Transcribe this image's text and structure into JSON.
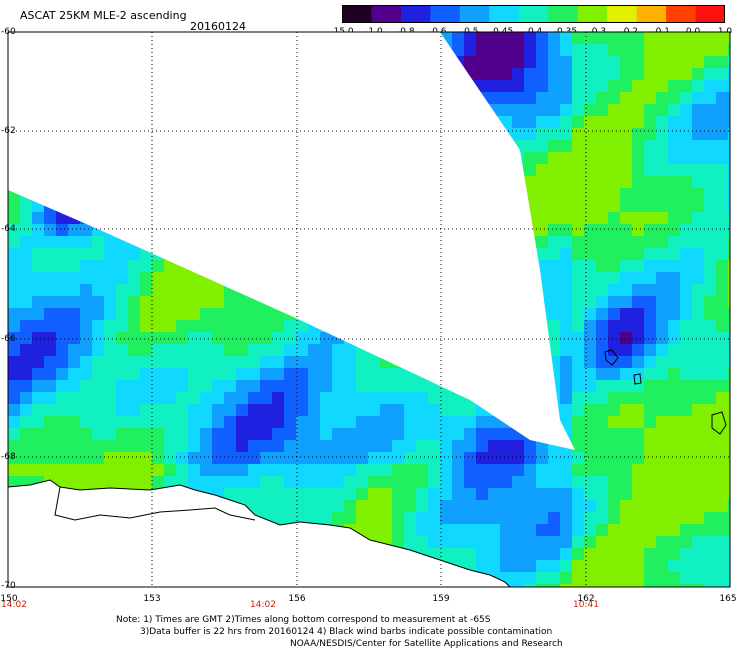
{
  "header": {
    "title": "ASCAT 25KM MLE-2 ascending",
    "date": "20160124"
  },
  "colorbar": {
    "labels": [
      "-15.0",
      "-1.0",
      "-0.8",
      "-0.6",
      "-0.5",
      "-0.45",
      "-0.4",
      "-0.35",
      "-0.3",
      "-0.2",
      "-0.1",
      "0.0",
      "1.0"
    ],
    "colors": [
      "#200020",
      "#50008a",
      "#2020e0",
      "#1060ff",
      "#10a0ff",
      "#10d8ff",
      "#10f0c0",
      "#20f060",
      "#80f000",
      "#e0f000",
      "#ffb000",
      "#ff4000",
      "#ff1010"
    ]
  },
  "axes": {
    "lat_labels": [
      "-60",
      "-62",
      "-64",
      "-66",
      "-68",
      "-70"
    ],
    "lon_labels": [
      "150",
      "153",
      "156",
      "159",
      "162",
      "165"
    ],
    "time_labels": [
      "14:02",
      "14:02",
      "10:41"
    ]
  },
  "notes": {
    "line1": "Note: 1) Times are GMT 2)Times along bottom correspond to measurement at -65S",
    "line2": "3)Data buffer is 22 hrs from 20160124 4) Black wind barbs indicate possible contamination",
    "line3": "NOAA/NESDIS/Center for Satellite Applications and Research"
  }
}
